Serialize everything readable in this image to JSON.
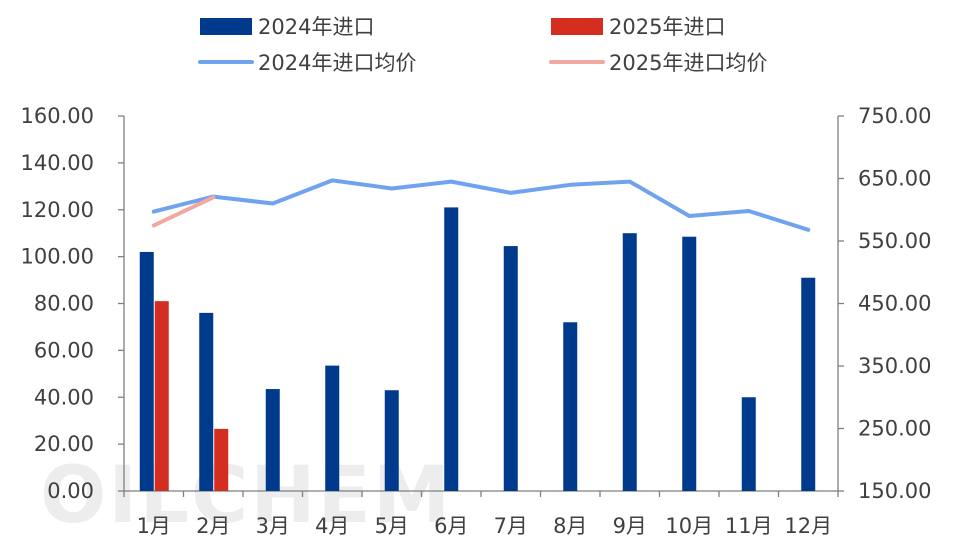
{
  "watermark": "OILCHEM",
  "legend": {
    "bar_2024": "2024年进口",
    "bar_2025": "2025年进口",
    "line_2024": "2024年进口均价",
    "line_2025": "2025年进口均价"
  },
  "colors": {
    "bar_2024": "#003A8C",
    "bar_2025": "#D42E20",
    "line_2024": "#6FA3EF",
    "line_2025": "#F2A7A1",
    "axis": "#7f7f7f",
    "text": "#404040"
  },
  "chart_data": {
    "type": "bar",
    "categories": [
      "1月",
      "2月",
      "3月",
      "4月",
      "5月",
      "6月",
      "7月",
      "8月",
      "9月",
      "10月",
      "11月",
      "12月"
    ],
    "series": [
      {
        "name": "2024年进口",
        "kind": "bar",
        "axis": "left",
        "values": [
          102.0,
          76.0,
          43.5,
          53.5,
          43.0,
          121.0,
          104.5,
          72.0,
          110.0,
          108.5,
          40.0,
          91.0
        ]
      },
      {
        "name": "2025年进口",
        "kind": "bar",
        "axis": "left",
        "values": [
          81.0,
          26.5,
          null,
          null,
          null,
          null,
          null,
          null,
          null,
          null,
          null,
          null
        ]
      },
      {
        "name": "2024年进口均价",
        "kind": "line",
        "axis": "right",
        "values": [
          597,
          621,
          610,
          647,
          634,
          645,
          627,
          640,
          645,
          590,
          598,
          568
        ]
      },
      {
        "name": "2025年进口均价",
        "kind": "line",
        "axis": "right",
        "values": [
          575,
          620,
          null,
          null,
          null,
          null,
          null,
          null,
          null,
          null,
          null,
          null
        ]
      }
    ],
    "y_left": {
      "min": 0,
      "max": 160,
      "step": 20,
      "ticks": [
        "0.00",
        "20.00",
        "40.00",
        "60.00",
        "80.00",
        "100.00",
        "120.00",
        "140.00",
        "160.00"
      ]
    },
    "y_right": {
      "min": 150,
      "max": 750,
      "step": 100,
      "ticks": [
        "150.00",
        "250.00",
        "350.00",
        "450.00",
        "550.00",
        "650.00",
        "750.00"
      ]
    },
    "grid": false,
    "legend_position": "top"
  }
}
